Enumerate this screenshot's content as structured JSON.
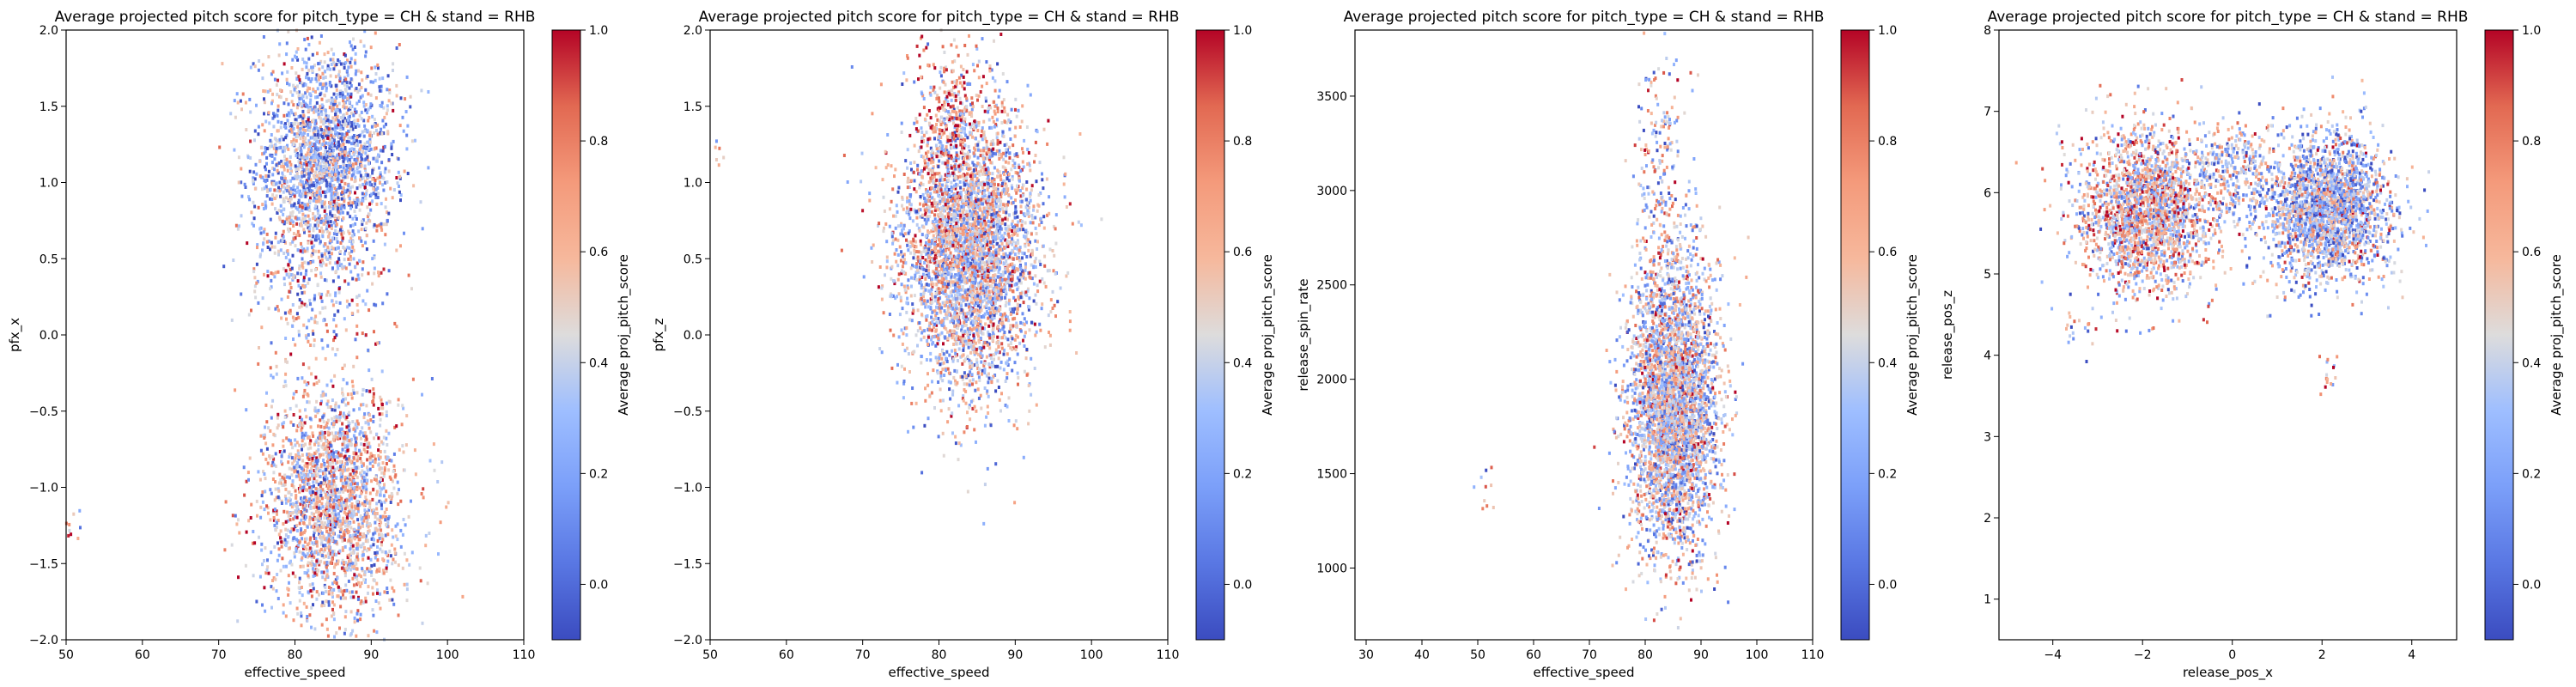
{
  "chart_data": [
    {
      "type": "scatter",
      "title": "Average projected pitch score for pitch_type = CH & stand = RHB",
      "xlabel": "effective_speed",
      "ylabel": "pfx_x",
      "xlim": [
        50,
        110
      ],
      "ylim": [
        -2.0,
        2.0
      ],
      "xticks": [
        50,
        60,
        70,
        80,
        90,
        100,
        110
      ],
      "yticks": [
        -2.0,
        -1.5,
        -1.0,
        -0.5,
        0.0,
        0.5,
        1.0,
        1.5,
        2.0
      ],
      "colorbar": {
        "label": "Average proj_pitch_score",
        "range": [
          -0.1,
          1.0
        ],
        "ticks": [
          0.0,
          0.2,
          0.4,
          0.6,
          0.8,
          1.0
        ],
        "colormap": "coolwarm"
      },
      "clusters": [
        {
          "center": [
            84,
            1.15
          ],
          "spread": [
            4.5,
            0.38
          ],
          "points": 2200,
          "mean_score": 0.3
        },
        {
          "center": [
            85,
            -1.1
          ],
          "spread": [
            4.5,
            0.38
          ],
          "points": 2200,
          "mean_score": 0.5
        },
        {
          "center": [
            82,
            0.35
          ],
          "spread": [
            4,
            0.35
          ],
          "points": 300,
          "mean_score": 0.55
        },
        {
          "center": [
            51,
            -1.25
          ],
          "spread": [
            0.8,
            0.05
          ],
          "points": 12,
          "mean_score": 0.5
        }
      ]
    },
    {
      "type": "scatter",
      "title": "Average projected pitch score for pitch_type = CH & stand = RHB",
      "xlabel": "effective_speed",
      "ylabel": "pfx_z",
      "xlim": [
        50,
        110
      ],
      "ylim": [
        -2.0,
        2.0
      ],
      "xticks": [
        50,
        60,
        70,
        80,
        90,
        100,
        110
      ],
      "yticks": [
        -2.0,
        -1.5,
        -1.0,
        -0.5,
        0.0,
        0.5,
        1.0,
        1.5,
        2.0
      ],
      "colorbar": {
        "label": "Average proj_pitch_score",
        "range": [
          -0.1,
          1.0
        ],
        "ticks": [
          0.0,
          0.2,
          0.4,
          0.6,
          0.8,
          1.0
        ],
        "colormap": "coolwarm"
      },
      "clusters": [
        {
          "center": [
            84,
            0.55
          ],
          "spread": [
            4.5,
            0.45
          ],
          "points": 4000,
          "mean_score": 0.45
        },
        {
          "center": [
            82,
            1.4
          ],
          "spread": [
            3,
            0.25
          ],
          "points": 300,
          "mean_score": 0.7
        },
        {
          "center": [
            51,
            1.2
          ],
          "spread": [
            0.6,
            0.08
          ],
          "points": 6,
          "mean_score": 0.6
        }
      ]
    },
    {
      "type": "scatter",
      "title": "Average projected pitch score for pitch_type = CH & stand = RHB",
      "xlabel": "effective_speed",
      "ylabel": "release_spin_rate",
      "xlim": [
        28,
        110
      ],
      "ylim": [
        620,
        3850
      ],
      "xticks": [
        30,
        40,
        50,
        60,
        70,
        80,
        90,
        100,
        110
      ],
      "yticks": [
        1000,
        1500,
        2000,
        2500,
        3000,
        3500
      ],
      "colorbar": {
        "label": "Average proj_pitch_score",
        "range": [
          -0.1,
          1.0
        ],
        "ticks": [
          0.0,
          0.2,
          0.4,
          0.6,
          0.8,
          1.0
        ],
        "colormap": "coolwarm"
      },
      "clusters": [
        {
          "center": [
            85,
            1850
          ],
          "spread": [
            4,
            380
          ],
          "points": 3600,
          "mean_score": 0.42
        },
        {
          "center": [
            83,
            3000
          ],
          "spread": [
            2.5,
            380
          ],
          "points": 250,
          "mean_score": 0.45
        },
        {
          "center": [
            51,
            1400
          ],
          "spread": [
            1.2,
            70
          ],
          "points": 10,
          "mean_score": 0.5
        }
      ]
    },
    {
      "type": "scatter",
      "title": "Average projected pitch score for pitch_type = CH & stand = RHB",
      "xlabel": "release_pos_x",
      "ylabel": "release_pos_z",
      "xlim": [
        -5.2,
        5.0
      ],
      "ylim": [
        0.5,
        8.0
      ],
      "xticks": [
        -4,
        -2,
        0,
        2,
        4
      ],
      "yticks": [
        1,
        2,
        3,
        4,
        5,
        6,
        7,
        8
      ],
      "colorbar": {
        "label": "Average proj_pitch_score",
        "range": [
          -0.1,
          1.0
        ],
        "ticks": [
          0.0,
          0.2,
          0.4,
          0.6,
          0.8,
          1.0
        ],
        "colormap": "coolwarm"
      },
      "clusters": [
        {
          "center": [
            -1.9,
            5.8
          ],
          "spread": [
            0.75,
            0.5
          ],
          "points": 2200,
          "mean_score": 0.52
        },
        {
          "center": [
            2.1,
            5.8
          ],
          "spread": [
            0.7,
            0.45
          ],
          "points": 2200,
          "mean_score": 0.35
        },
        {
          "center": [
            0.1,
            6.3
          ],
          "spread": [
            0.5,
            0.3
          ],
          "points": 300,
          "mean_score": 0.4
        },
        {
          "center": [
            2.2,
            3.8
          ],
          "spread": [
            0.15,
            0.15
          ],
          "points": 15,
          "mean_score": 0.6
        },
        {
          "center": [
            -3.6,
            4.3
          ],
          "spread": [
            0.2,
            0.15
          ],
          "points": 15,
          "mean_score": 0.5
        }
      ]
    }
  ]
}
